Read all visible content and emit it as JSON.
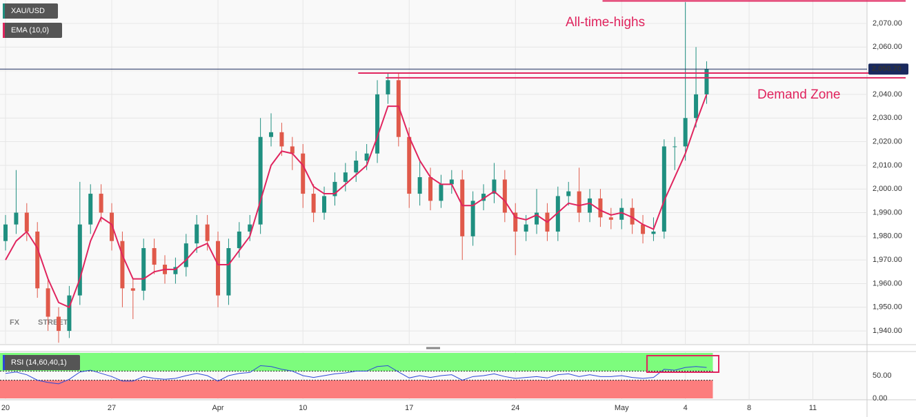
{
  "chart_data": [
    {
      "type": "candlestick",
      "name": "XAU/USD",
      "x": [
        0,
        0.5,
        1,
        1.5,
        2,
        2.5,
        3,
        3.5,
        4,
        4.5,
        5,
        5.5,
        6,
        6.5,
        7,
        7.5,
        8,
        8.5,
        9,
        9.5,
        10,
        10.5,
        11,
        11.5,
        12,
        12.5,
        13,
        13.5,
        14,
        14.5,
        15,
        15.5,
        16,
        16.5,
        17,
        17.5,
        18,
        18.5,
        19,
        19.5,
        20,
        20.5,
        21,
        21.5,
        22,
        22.5,
        23,
        23.5,
        24,
        24.5,
        25,
        25.5,
        26,
        26.5,
        27,
        27.5,
        28,
        28.5,
        29,
        29.5,
        30,
        30.5,
        31,
        31.5,
        32,
        32.5,
        33
      ],
      "open": [
        1978,
        1985,
        1990,
        1982,
        1958,
        1946,
        1940,
        1955,
        1985,
        1998,
        1990,
        1978,
        1958,
        1957,
        1975,
        1968,
        1964,
        1967,
        1977,
        1985,
        1978,
        1955,
        1975,
        1982,
        1985,
        2022,
        2024,
        2018,
        2015,
        1998,
        1990,
        1997,
        2003,
        2007,
        2012,
        2015,
        2040,
        2046,
        2022,
        1998,
        2005,
        1995,
        2002,
        2004,
        1980,
        1995,
        1998,
        2004,
        1990,
        1982,
        1985,
        1990,
        1982,
        1997,
        1999,
        1990,
        1996,
        1988,
        1987,
        1992,
        1985,
        1981,
        1982,
        2018,
        2018,
        2030,
        2040
      ],
      "high": [
        1989,
        2008,
        1994,
        1986,
        1962,
        1950,
        1959,
        2003,
        2002,
        2002,
        1994,
        1982,
        1962,
        1979,
        1979,
        1972,
        1971,
        1981,
        1989,
        1989,
        1982,
        1979,
        1986,
        1989,
        2030,
        2032,
        2028,
        2022,
        2019,
        2002,
        2001,
        2007,
        2011,
        2016,
        2019,
        2046,
        2049,
        2049,
        2026,
        2012,
        2009,
        2006,
        2008,
        2008,
        1999,
        2002,
        2011,
        2008,
        1994,
        1989,
        2000,
        1994,
        2001,
        2003,
        2009,
        2000,
        2000,
        1992,
        1996,
        1996,
        1989,
        1988,
        2021,
        2022,
        2079,
        2060,
        2054
      ],
      "low": [
        1974,
        1981,
        1978,
        1954,
        1940,
        1935,
        1937,
        1951,
        1981,
        1986,
        1974,
        1950,
        1945,
        1953,
        1964,
        1960,
        1960,
        1963,
        1973,
        1974,
        1950,
        1951,
        1971,
        1978,
        1981,
        2018,
        2014,
        2008,
        1992,
        1986,
        1987,
        1993,
        1999,
        2003,
        2008,
        2011,
        2036,
        2018,
        1992,
        1993,
        1991,
        1992,
        1998,
        1970,
        1976,
        1991,
        1994,
        1986,
        1972,
        1978,
        1981,
        1978,
        1978,
        1993,
        1986,
        1986,
        1984,
        1983,
        1983,
        1981,
        1977,
        1978,
        1979,
        2008,
        2012,
        2026,
        2036
      ],
      "close": [
        1985,
        1990,
        1982,
        1958,
        1946,
        1940,
        1955,
        1985,
        1998,
        1990,
        1978,
        1958,
        1957,
        1975,
        1968,
        1964,
        1967,
        1977,
        1985,
        1978,
        1955,
        1975,
        1982,
        1985,
        2022,
        2024,
        2018,
        2015,
        1998,
        1990,
        1997,
        2003,
        2007,
        2012,
        2015,
        2040,
        2046,
        2022,
        1998,
        2005,
        1995,
        2002,
        2004,
        1980,
        1995,
        1998,
        2004,
        1990,
        1982,
        1985,
        1990,
        1982,
        1997,
        1999,
        1990,
        1996,
        1988,
        1987,
        1992,
        1985,
        1981,
        1982,
        2018,
        2018,
        2030,
        2040,
        2050.7
      ],
      "up_color": "#1f8f80",
      "down_color": "#e0594a",
      "overlay": {
        "name": "EMA (10,0)",
        "color": "#e0245e",
        "values": [
          1970,
          1978,
          1982,
          1975,
          1962,
          1952,
          1950,
          1962,
          1978,
          1988,
          1985,
          1972,
          1962,
          1962,
          1965,
          1966,
          1966,
          1970,
          1975,
          1977,
          1968,
          1968,
          1974,
          1980,
          1995,
          2010,
          2016,
          2015,
          2010,
          2001,
          1998,
          1998,
          2002,
          2006,
          2010,
          2022,
          2035,
          2035,
          2022,
          2012,
          2005,
          2002,
          2002,
          1993,
          1993,
          1996,
          1999,
          1995,
          1988,
          1987,
          1989,
          1986,
          1990,
          1994,
          1993,
          1994,
          1991,
          1989,
          1990,
          1988,
          1985,
          1983,
          1995,
          2005,
          2015,
          2028,
          2040
        ]
      },
      "xlim": [
        -0.26,
        40.55
      ],
      "ylim": [
        1934.2,
        2079.9
      ],
      "yticks": [
        {
          "value": 1940,
          "label": "1,940.00"
        },
        {
          "value": 1950,
          "label": "1,950.00"
        },
        {
          "value": 1960,
          "label": "1,960.00"
        },
        {
          "value": 1970,
          "label": "1,970.00"
        },
        {
          "value": 1980,
          "label": "1,980.00"
        },
        {
          "value": 1990,
          "label": "1,990.00"
        },
        {
          "value": 2000,
          "label": "2,000.00"
        },
        {
          "value": 2010,
          "label": "2,010.00"
        },
        {
          "value": 2020,
          "label": "2,020.00"
        },
        {
          "value": 2030,
          "label": "2,030.00"
        },
        {
          "value": 2040,
          "label": "2,040.00"
        },
        {
          "value": 2050,
          "label": "2,050.00"
        },
        {
          "value": 2060,
          "label": "2,060.00"
        },
        {
          "value": 2070,
          "label": "2,070.00"
        }
      ],
      "xticks": [
        {
          "value": 0,
          "label": "20"
        },
        {
          "value": 5,
          "label": "27"
        },
        {
          "value": 10,
          "label": "Apr"
        },
        {
          "value": 14,
          "label": "10"
        },
        {
          "value": 19,
          "label": "17"
        },
        {
          "value": 24,
          "label": "24"
        },
        {
          "value": 29,
          "label": "May"
        },
        {
          "value": 32,
          "label": "4"
        },
        {
          "value": 35,
          "label": "8"
        },
        {
          "value": 38,
          "label": "11"
        }
      ],
      "grid": true,
      "last_price": {
        "value": 2050.7,
        "label": "2,050.70",
        "color": "#1a2a5e"
      },
      "levels": [
        {
          "value": 2079.5,
          "from": 28.1,
          "color": "#e0245e"
        },
        {
          "value": 2049,
          "from": 16.6,
          "color": "#e0245e"
        },
        {
          "value": 2047,
          "from": 17.9,
          "color": "#e0245e"
        }
      ],
      "annotations": [
        "All-time-highs",
        "Demand Zone"
      ],
      "watermark": {
        "prefix": "FX",
        "suffix": "STREET"
      }
    },
    {
      "type": "line",
      "x": [
        0,
        0.5,
        1,
        1.5,
        2,
        2.5,
        3,
        3.5,
        4,
        4.5,
        5,
        5.5,
        6,
        6.5,
        7,
        7.5,
        8,
        8.5,
        9,
        9.5,
        10,
        10.5,
        11,
        11.5,
        12,
        12.5,
        13,
        13.5,
        14,
        14.5,
        15,
        15.5,
        16,
        16.5,
        17,
        17.5,
        18,
        18.5,
        19,
        19.5,
        20,
        20.5,
        21,
        21.5,
        22,
        22.5,
        23,
        23.5,
        24,
        24.5,
        25,
        25.5,
        26,
        26.5,
        27,
        27.5,
        28,
        28.5,
        29,
        29.5,
        30,
        30.5,
        31,
        31.5,
        32,
        32.5,
        33
      ],
      "series": [
        {
          "name": "RSI (14,60,40,1)",
          "color": "#2c48d8",
          "values": [
            55,
            58,
            52,
            40,
            35,
            32,
            42,
            58,
            62,
            55,
            48,
            38,
            38,
            48,
            44,
            42,
            44,
            50,
            55,
            50,
            38,
            50,
            55,
            57,
            72,
            70,
            64,
            60,
            50,
            46,
            50,
            54,
            56,
            60,
            60,
            70,
            72,
            58,
            45,
            50,
            46,
            50,
            52,
            40,
            48,
            50,
            54,
            48,
            44,
            46,
            48,
            45,
            52,
            54,
            48,
            52,
            48,
            48,
            50,
            46,
            44,
            46,
            64,
            62,
            68,
            70,
            68
          ]
        }
      ],
      "ylim": [
        0,
        100
      ],
      "yticks": [
        {
          "value": 0,
          "label": "0.00"
        },
        {
          "value": 50,
          "label": "50.00"
        }
      ],
      "bands": [
        {
          "from": 60,
          "to": 100,
          "color": "#7dfc7d"
        },
        {
          "from": 0,
          "to": 40,
          "color": "#fc7d7d"
        }
      ]
    }
  ]
}
